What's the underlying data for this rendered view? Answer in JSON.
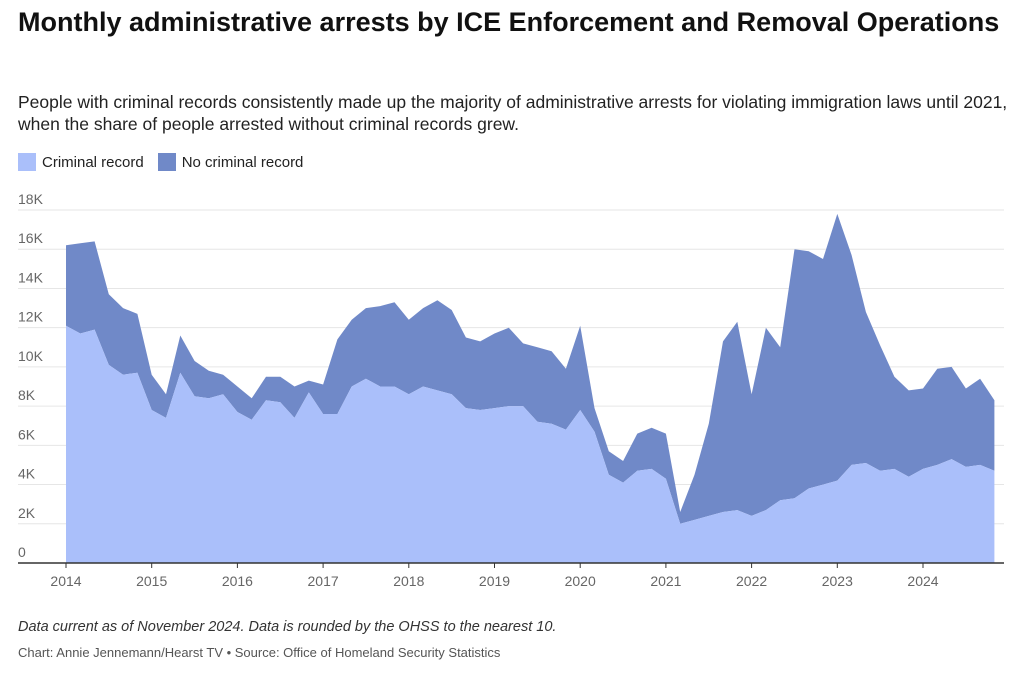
{
  "title": "Monthly administrative arrests by ICE Enforcement and Removal Operations",
  "subtitle": "People with criminal records consistently made up the majority of administrative arrests for violating immigration laws until 2021, when the share of people arrested without criminal records grew.",
  "note": "Data current as of November 2024. Data is rounded by the OHSS to the nearest 10.",
  "credit": "Chart: Annie Jennemann/Hearst TV • Source: Office of Homeland Security Statistics",
  "colors": {
    "criminal": "#aabffa",
    "no_criminal": "#7089c8",
    "grid": "#e6e6e6",
    "axis": "#333333"
  },
  "chart_data": {
    "type": "area",
    "stacked": true,
    "legend": "top-left",
    "grid": true,
    "xlabel": "",
    "ylabel": "",
    "x_ticks": [
      "2014",
      "2015",
      "2016",
      "2017",
      "2018",
      "2019",
      "2020",
      "2021",
      "2022",
      "2023",
      "2024"
    ],
    "y_ticks": [
      "0",
      "2K",
      "4K",
      "6K",
      "8K",
      "10K",
      "12K",
      "14K",
      "16K",
      "18K"
    ],
    "ylim": [
      0,
      18000
    ],
    "xlim": [
      "2014-01",
      "2024-11"
    ],
    "x": [
      "2014-01",
      "2014-03",
      "2014-05",
      "2014-07",
      "2014-09",
      "2014-11",
      "2015-01",
      "2015-03",
      "2015-05",
      "2015-07",
      "2015-09",
      "2015-11",
      "2016-01",
      "2016-03",
      "2016-05",
      "2016-07",
      "2016-09",
      "2016-11",
      "2017-01",
      "2017-03",
      "2017-05",
      "2017-07",
      "2017-09",
      "2017-11",
      "2018-01",
      "2018-03",
      "2018-05",
      "2018-07",
      "2018-09",
      "2018-11",
      "2019-01",
      "2019-03",
      "2019-05",
      "2019-07",
      "2019-09",
      "2019-11",
      "2020-01",
      "2020-03",
      "2020-05",
      "2020-07",
      "2020-09",
      "2020-11",
      "2021-01",
      "2021-03",
      "2021-05",
      "2021-07",
      "2021-09",
      "2021-11",
      "2022-01",
      "2022-03",
      "2022-05",
      "2022-07",
      "2022-09",
      "2022-11",
      "2023-01",
      "2023-03",
      "2023-05",
      "2023-07",
      "2023-09",
      "2023-11",
      "2024-01",
      "2024-03",
      "2024-05",
      "2024-07",
      "2024-09",
      "2024-11"
    ],
    "series": [
      {
        "name": "Criminal record",
        "values": [
          12100,
          11700,
          11900,
          10100,
          9600,
          9700,
          7800,
          7400,
          9700,
          8500,
          8400,
          8600,
          7700,
          7300,
          8300,
          8200,
          7400,
          8700,
          7600,
          7600,
          9000,
          9400,
          9000,
          9000,
          8600,
          9000,
          8800,
          8600,
          7900,
          7800,
          7900,
          8000,
          8000,
          7200,
          7100,
          6800,
          7800,
          6700,
          4500,
          4100,
          4700,
          4800,
          4300,
          2000,
          2200,
          2400,
          2600,
          2700,
          2400,
          2700,
          3200,
          3300,
          3800,
          4000,
          4200,
          5000,
          5100,
          4700,
          4800,
          4400,
          4800,
          5000,
          5300,
          4900,
          5000,
          4700
        ]
      },
      {
        "name": "No criminal record",
        "values": [
          4100,
          4600,
          4500,
          3600,
          3400,
          3000,
          1800,
          1200,
          1900,
          1800,
          1400,
          1000,
          1300,
          1100,
          1200,
          1300,
          1600,
          600,
          1500,
          3800,
          3400,
          3600,
          4100,
          4300,
          3800,
          4000,
          4600,
          4300,
          3600,
          3500,
          3800,
          4000,
          3200,
          3800,
          3700,
          3100,
          4300,
          1200,
          1200,
          1100,
          1900,
          2100,
          2300,
          600,
          2300,
          4700,
          8700,
          9600,
          6200,
          9300,
          7800,
          12700,
          12100,
          11500,
          13600,
          10700,
          7700,
          6400,
          4700,
          4400,
          4100,
          4900,
          4700,
          4000,
          4400,
          3600
        ]
      }
    ]
  }
}
